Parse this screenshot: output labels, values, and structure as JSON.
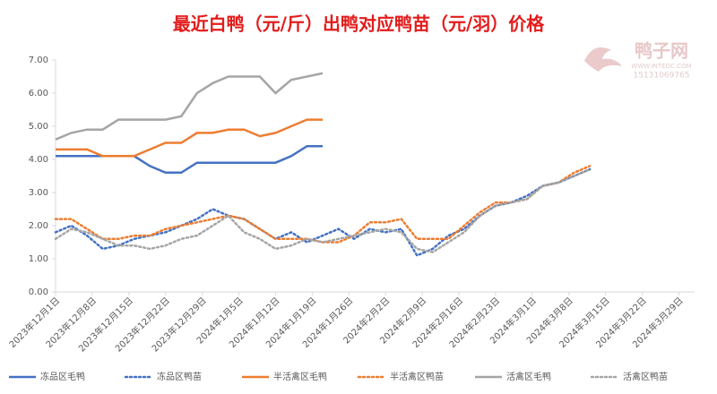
{
  "chart_data": {
    "type": "line",
    "title": "最近白鸭（元/斤）出鸭对应鸭苗（元/羽）价格",
    "watermark": {
      "brand": "鸭子网",
      "site": "WWW.INTEDC.COM",
      "phone": "15131069765"
    },
    "x": [
      "2023年12月1日",
      "2023年12月4日",
      "2023年12月7日",
      "2023年12月10日",
      "2023年12月13日",
      "2023年12月16日",
      "2023年12月19日",
      "2023年12月22日",
      "2023年12月25日",
      "2023年12月28日",
      "2023年12月31日",
      "2024年1月3日",
      "2024年1月6日",
      "2024年1月9日",
      "2024年1月12日",
      "2024年1月15日",
      "2024年1月18日",
      "2024年1月21日",
      "2024年1月24日",
      "2024年1月27日",
      "2024年1月30日",
      "2024年2月2日",
      "2024年2月5日",
      "2024年2月8日",
      "2024年2月11日",
      "2024年2月14日",
      "2024年2月17日",
      "2024年2月20日",
      "2024年2月23日",
      "2024年2月26日",
      "2024年2月29日",
      "2024年3月3日",
      "2024年3月6日",
      "2024年3月9日",
      "2024年3月12日"
    ],
    "xlim": [
      "2023年12月1日",
      "2024年4月1日"
    ],
    "xticks": [
      "2023年12月1日",
      "2023年12月8日",
      "2023年12月15日",
      "2023年12月22日",
      "2023年12月29日",
      "2024年1月5日",
      "2024年1月12日",
      "2024年1月19日",
      "2024年1月26日",
      "2024年2月2日",
      "2024年2月9日",
      "2024年2月16日",
      "2024年2月23日",
      "2024年3月1日",
      "2024年3月8日",
      "2024年3月15日",
      "2024年3月22日",
      "2024年3月29日"
    ],
    "ylim": [
      0,
      7
    ],
    "yticks": [
      {
        "value": 0,
        "label": "0.00"
      },
      {
        "value": 1,
        "label": "1.00"
      },
      {
        "value": 2,
        "label": "2.00"
      },
      {
        "value": 3,
        "label": "3.00"
      },
      {
        "value": 4,
        "label": "4.00"
      },
      {
        "value": 5,
        "label": "5.00"
      },
      {
        "value": 6,
        "label": "6.00"
      },
      {
        "value": 7,
        "label": "7.00"
      }
    ],
    "legend": "bottom",
    "series": [
      {
        "name": "冻品区毛鸭",
        "color": "#4472c4",
        "dash": false,
        "values": [
          4.1,
          4.1,
          4.1,
          4.1,
          4.1,
          4.1,
          3.8,
          3.6,
          3.6,
          3.9,
          3.9,
          3.9,
          3.9,
          3.9,
          3.9,
          4.1,
          4.4,
          4.4,
          null,
          null,
          null,
          null,
          null,
          null,
          null,
          null,
          null,
          null,
          null,
          null,
          null,
          null,
          null,
          null,
          null
        ]
      },
      {
        "name": "冻品区鸭苗",
        "color": "#4472c4",
        "dash": true,
        "values": [
          1.8,
          2.0,
          1.7,
          1.3,
          1.4,
          1.6,
          1.7,
          1.8,
          2.0,
          2.2,
          2.5,
          2.3,
          2.2,
          1.9,
          1.6,
          1.8,
          1.5,
          1.7,
          1.9,
          1.6,
          1.9,
          1.8,
          1.9,
          1.1,
          1.3,
          1.7,
          1.9,
          2.3,
          2.6,
          2.7,
          2.9,
          3.2,
          3.3,
          3.5,
          3.7
        ]
      },
      {
        "name": "半活禽区毛鸭",
        "color": "#ed7d31",
        "dash": false,
        "values": [
          4.3,
          4.3,
          4.3,
          4.1,
          4.1,
          4.1,
          4.3,
          4.5,
          4.5,
          4.8,
          4.8,
          4.9,
          4.9,
          4.7,
          4.8,
          5.0,
          5.2,
          5.2,
          null,
          null,
          null,
          null,
          null,
          null,
          null,
          null,
          null,
          null,
          null,
          null,
          null,
          null,
          null,
          null,
          null
        ]
      },
      {
        "name": "半活禽区鸭苗",
        "color": "#ed7d31",
        "dash": true,
        "values": [
          2.2,
          2.2,
          1.9,
          1.6,
          1.6,
          1.7,
          1.7,
          1.9,
          2.0,
          2.1,
          2.2,
          2.3,
          2.2,
          1.9,
          1.6,
          1.6,
          1.6,
          1.5,
          1.5,
          1.7,
          2.1,
          2.1,
          2.2,
          1.6,
          1.6,
          1.6,
          2.0,
          2.4,
          2.7,
          2.7,
          2.8,
          3.2,
          3.3,
          3.6,
          3.8
        ]
      },
      {
        "name": "活禽区毛鸭",
        "color": "#a5a5a5",
        "dash": false,
        "values": [
          4.6,
          4.8,
          4.9,
          4.9,
          5.2,
          5.2,
          5.2,
          5.2,
          5.3,
          6.0,
          6.3,
          6.5,
          6.5,
          6.5,
          6.0,
          6.4,
          6.5,
          6.6,
          null,
          null,
          null,
          null,
          null,
          null,
          null,
          null,
          null,
          null,
          null,
          null,
          null,
          null,
          null,
          null,
          null
        ]
      },
      {
        "name": "活禽区鸭苗",
        "color": "#a5a5a5",
        "dash": true,
        "values": [
          1.6,
          1.9,
          1.8,
          1.6,
          1.4,
          1.4,
          1.3,
          1.4,
          1.6,
          1.7,
          2.0,
          2.3,
          1.8,
          1.6,
          1.3,
          1.4,
          1.6,
          1.5,
          1.6,
          1.7,
          1.8,
          1.9,
          1.8,
          1.3,
          1.2,
          1.5,
          1.8,
          2.3,
          2.6,
          2.7,
          2.8,
          3.2,
          3.3,
          3.5,
          3.7
        ]
      }
    ]
  }
}
